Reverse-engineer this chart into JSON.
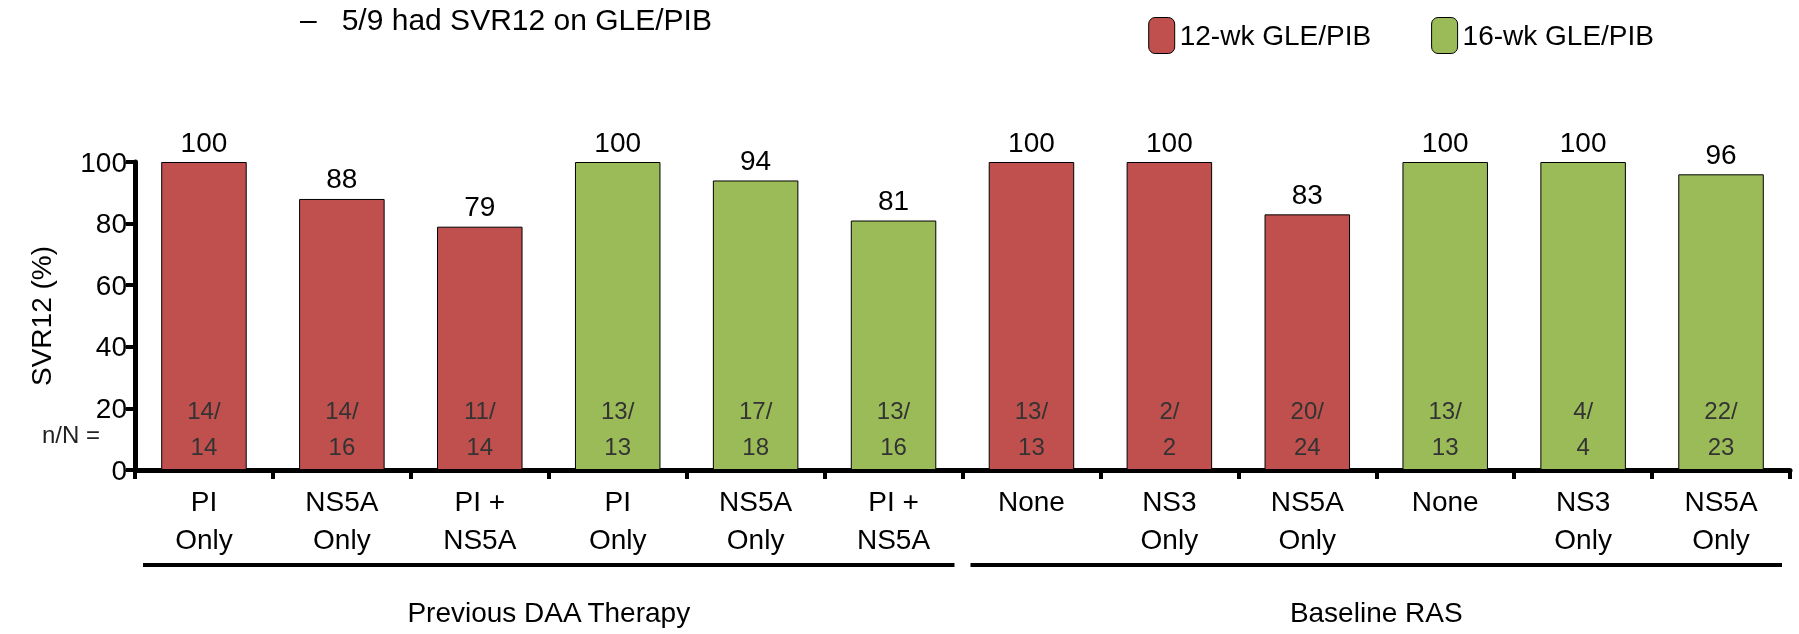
{
  "chart_data": {
    "type": "bar",
    "ylabel": "SVR12 (%)",
    "categories": [
      "PI\nOnly",
      "NS5A\nOnly",
      "PI +\nNS5A",
      "PI\nOnly",
      "NS5A\nOnly",
      "PI +\nNS5A",
      "None",
      "NS3\nOnly",
      "NS5A\nOnly",
      "None",
      "NS3\nOnly",
      "NS5A\nOnly"
    ],
    "series": [
      {
        "name": "12-wk GLE/PIB",
        "color": "#c0504d",
        "values": [
          100,
          88,
          79,
          null,
          null,
          null,
          100,
          100,
          83,
          null,
          null,
          null
        ]
      },
      {
        "name": "16-wk GLE/PIB",
        "color": "#9bbb59",
        "values": [
          null,
          null,
          null,
          100,
          94,
          81,
          null,
          null,
          null,
          100,
          100,
          96
        ]
      }
    ],
    "ylim": [
      0,
      100
    ],
    "yticks": [
      0,
      20,
      40,
      60,
      80,
      100
    ],
    "grid": false,
    "legend": "top right",
    "data_labels": true,
    "annotations": [
      "–   5/9 had SVR12 on GLE/PIB",
      "n/N =",
      "14/\n14",
      "14/\n16",
      "11/\n14",
      "13/\n13",
      "17/\n18",
      "13/\n16",
      "13/\n13",
      "2/\n2",
      "20/\n24",
      "13/\n13",
      "4/\n4",
      "22/\n23",
      "Previous DAA Therapy",
      "Baseline RAS"
    ]
  }
}
